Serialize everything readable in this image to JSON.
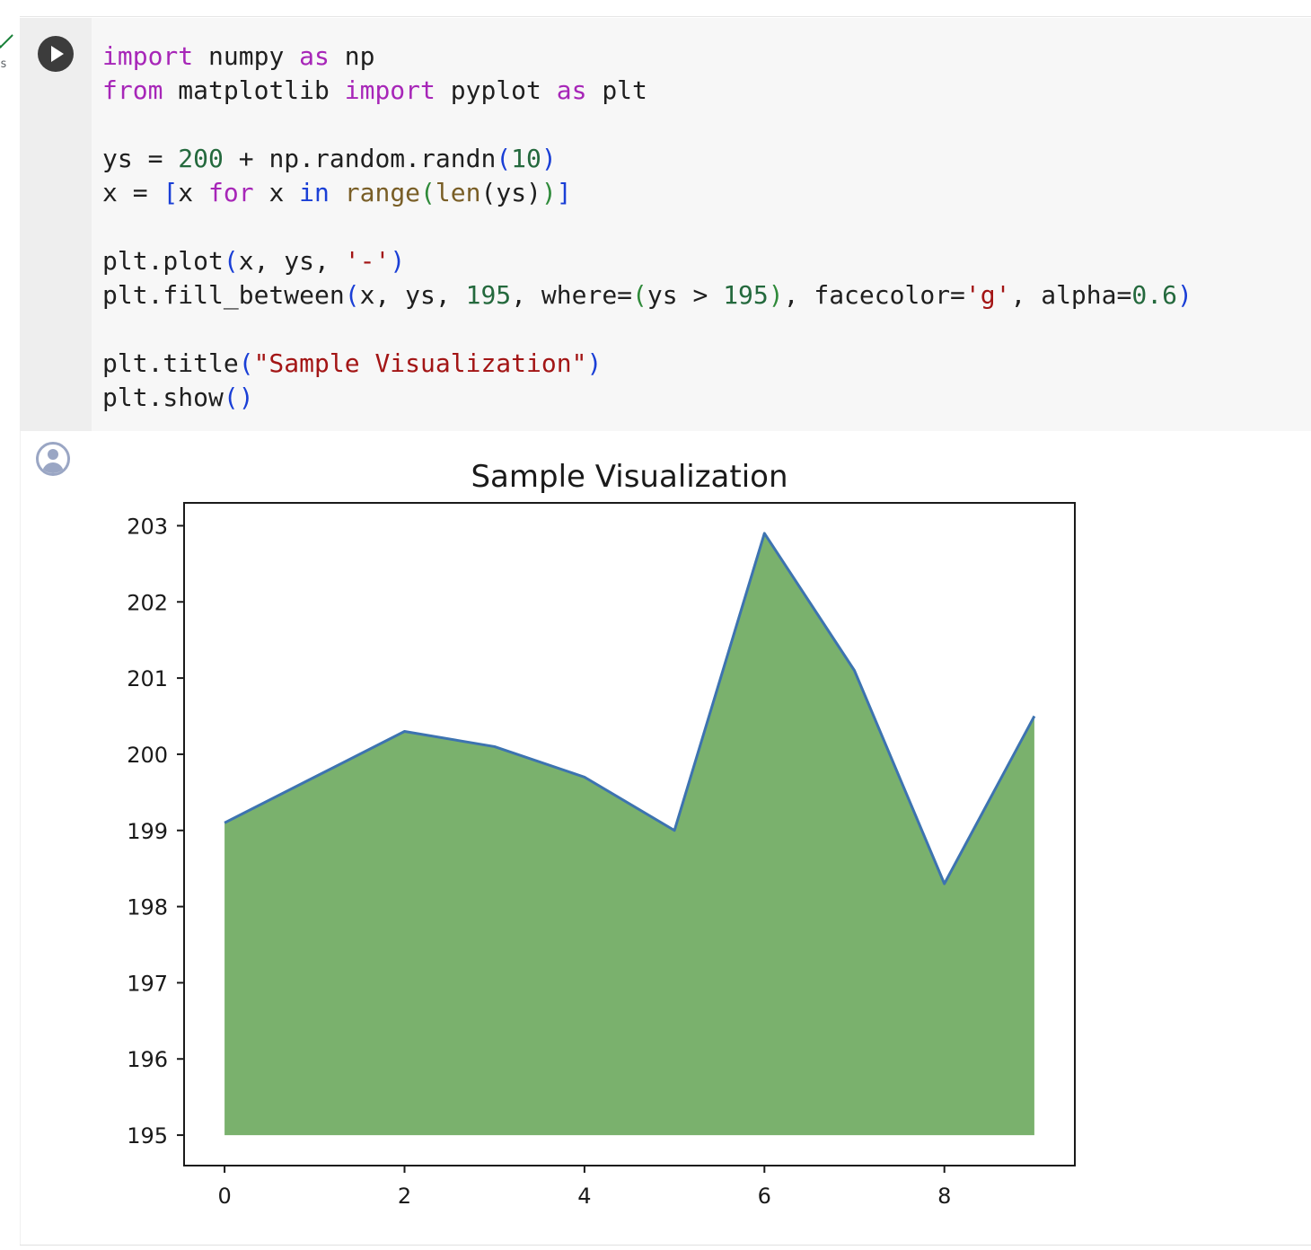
{
  "cell": {
    "execution_time": "s",
    "code_lines": [
      [
        [
          "kw",
          "import"
        ],
        [
          "t",
          " numpy "
        ],
        [
          "kw",
          "as"
        ],
        [
          "t",
          " np"
        ]
      ],
      [
        [
          "kw",
          "from"
        ],
        [
          "t",
          " matplotlib "
        ],
        [
          "kw",
          "import"
        ],
        [
          "t",
          " pyplot "
        ],
        [
          "kw",
          "as"
        ],
        [
          "t",
          " plt"
        ]
      ],
      [],
      [
        [
          "t",
          "ys = "
        ],
        [
          "num",
          "200"
        ],
        [
          "t",
          " + np.random.randn"
        ],
        [
          "br1",
          "("
        ],
        [
          "num",
          "10"
        ],
        [
          "br1",
          ")"
        ]
      ],
      [
        [
          "t",
          "x = "
        ],
        [
          "br1",
          "["
        ],
        [
          "t",
          "x "
        ],
        [
          "kw",
          "for"
        ],
        [
          "t",
          " x "
        ],
        [
          "kb",
          "in"
        ],
        [
          "t",
          " "
        ],
        [
          "fn",
          "range"
        ],
        [
          "br2",
          "("
        ],
        [
          "fn",
          "len"
        ],
        [
          "t",
          "(ys)"
        ],
        [
          "br2",
          ")"
        ],
        [
          "br1",
          "]"
        ]
      ],
      [],
      [
        [
          "t",
          "plt.plot"
        ],
        [
          "br1",
          "("
        ],
        [
          "t",
          "x, ys, "
        ],
        [
          "str",
          "'-'"
        ],
        [
          "br1",
          ")"
        ]
      ],
      [
        [
          "t",
          "plt.fill_between"
        ],
        [
          "br1",
          "("
        ],
        [
          "t",
          "x, ys, "
        ],
        [
          "num",
          "195"
        ],
        [
          "t",
          ", where="
        ],
        [
          "br2",
          "("
        ],
        [
          "t",
          "ys > "
        ],
        [
          "num",
          "195"
        ],
        [
          "br2",
          ")"
        ],
        [
          "t",
          ", facecolor="
        ],
        [
          "str",
          "'g'"
        ],
        [
          "t",
          ", alpha="
        ],
        [
          "num",
          "0.6"
        ],
        [
          "br1",
          ")"
        ]
      ],
      [],
      [
        [
          "t",
          "plt.title"
        ],
        [
          "br1",
          "("
        ],
        [
          "str",
          "\"Sample Visualization\""
        ],
        [
          "br1",
          ")"
        ]
      ],
      [
        [
          "t",
          "plt.show"
        ],
        [
          "br1",
          "()"
        ]
      ]
    ]
  },
  "chart_data": {
    "type": "area",
    "title": "Sample Visualization",
    "x": [
      0,
      1,
      2,
      3,
      4,
      5,
      6,
      7,
      8,
      9
    ],
    "series": [
      {
        "values": [
          199.1,
          199.7,
          200.3,
          200.1,
          199.7,
          199.0,
          202.9,
          201.1,
          198.3,
          200.5
        ]
      }
    ],
    "fill_baseline": 195,
    "line_color": "#3d73b0",
    "fill_color": "#7ab16d",
    "xlim": [
      -0.45,
      9.45
    ],
    "ylim": [
      194.6,
      203.3
    ],
    "x_ticks": [
      0,
      2,
      4,
      6,
      8
    ],
    "y_ticks": [
      195,
      196,
      197,
      198,
      199,
      200,
      201,
      202,
      203
    ],
    "grid": false
  }
}
